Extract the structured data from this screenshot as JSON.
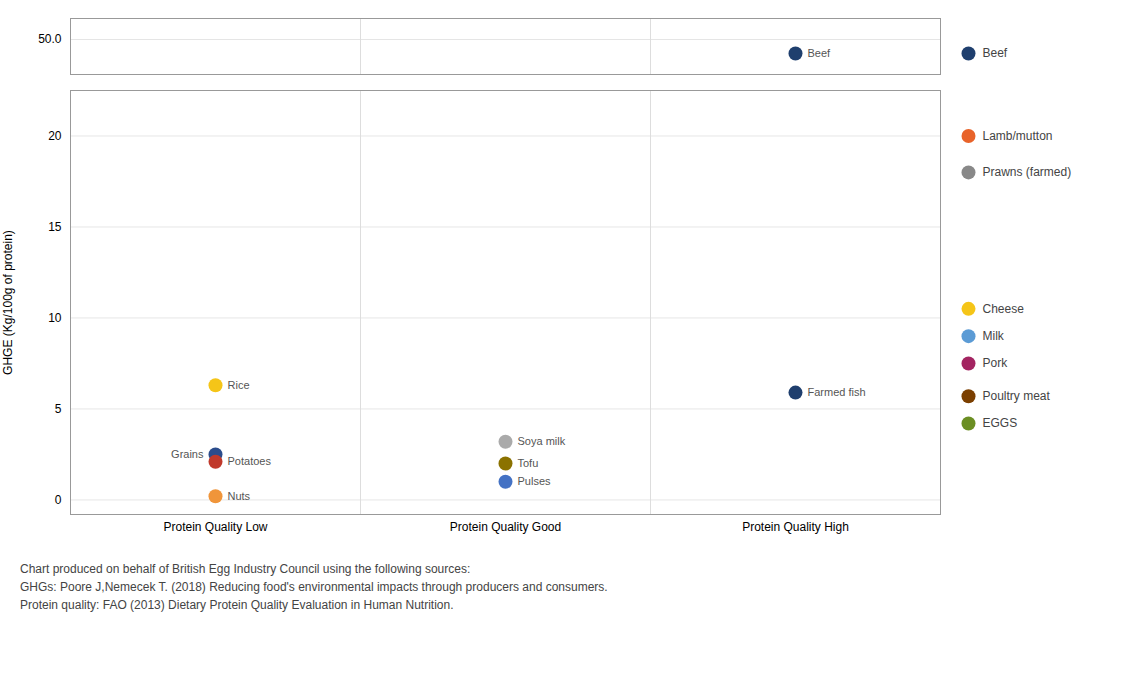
{
  "chart_data": [
    {
      "type": "scatter",
      "categories": [
        "Protein Quality Low",
        "Protein Quality Good",
        "Protein Quality High"
      ],
      "tick_labels": "y",
      "ylim": [
        47.5,
        51.5
      ],
      "yticks": [
        50
      ],
      "grid": true,
      "points": [
        {
          "name": "Beef",
          "x": "Protein Quality High",
          "y": 49.0,
          "color": "#1F3F6E"
        }
      ],
      "side_labels": [
        {
          "name": "Beef",
          "y": 49.0,
          "color": "#1F3F6E"
        }
      ]
    },
    {
      "type": "scatter",
      "categories": [
        "Protein Quality Low",
        "Protein Quality Good",
        "Protein Quality High"
      ],
      "ylabel": "GHGE (Kg/100g of protein)",
      "ylim": [
        -0.8,
        22.5
      ],
      "yticks": [
        0,
        5,
        10,
        15,
        20
      ],
      "grid": true,
      "points": [
        {
          "name": "Grains",
          "x": "Protein Quality Low",
          "y": 2.5,
          "color": "#2B4C8C"
        },
        {
          "name": "Rice",
          "x": "Protein Quality Low",
          "y": 6.3,
          "color": "#F5C518"
        },
        {
          "name": "Nuts",
          "x": "Protein Quality Low",
          "y": 0.2,
          "color": "#F0953A"
        },
        {
          "name": "Potatoes",
          "x": "Protein Quality Low",
          "y": 2.1,
          "color": "#C0392B"
        },
        {
          "name": "Soya milk",
          "x": "Protein Quality Good",
          "y": 3.2,
          "color": "#AAAAAA"
        },
        {
          "name": "Tofu",
          "x": "Protein Quality Good",
          "y": 2.0,
          "color": "#8B7200"
        },
        {
          "name": "Pulses",
          "x": "Protein Quality Good",
          "y": 1.0,
          "color": "#4472C4"
        },
        {
          "name": "Farmed fish",
          "x": "Protein Quality High",
          "y": 5.9,
          "color": "#1F3F6E"
        }
      ],
      "side_labels": [
        {
          "name": "Lamb/mutton",
          "y": 20.0,
          "color": "#E8632A"
        },
        {
          "name": "Prawns (farmed)",
          "y": 18.0,
          "color": "#888888"
        },
        {
          "name": "Cheese",
          "y": 10.5,
          "color": "#F5C518"
        },
        {
          "name": "Milk",
          "y": 9.0,
          "color": "#5B9BD5"
        },
        {
          "name": "Pork",
          "y": 7.5,
          "color": "#A32461"
        },
        {
          "name": "Poultry meat",
          "y": 5.7,
          "color": "#7B3F00"
        },
        {
          "name": "EGGS",
          "y": 4.2,
          "color": "#6B8E23"
        }
      ],
      "footnote": "Chart produced on behalf of British Egg Industry Council using the following sources:\nGHGs: Poore J,Nemecek T. (2018) Reducing food's environmental impacts through producers and consumers.\nProtein quality: FAO (2013) Dietary Protein Quality Evaluation in Human Nutrition."
    }
  ]
}
